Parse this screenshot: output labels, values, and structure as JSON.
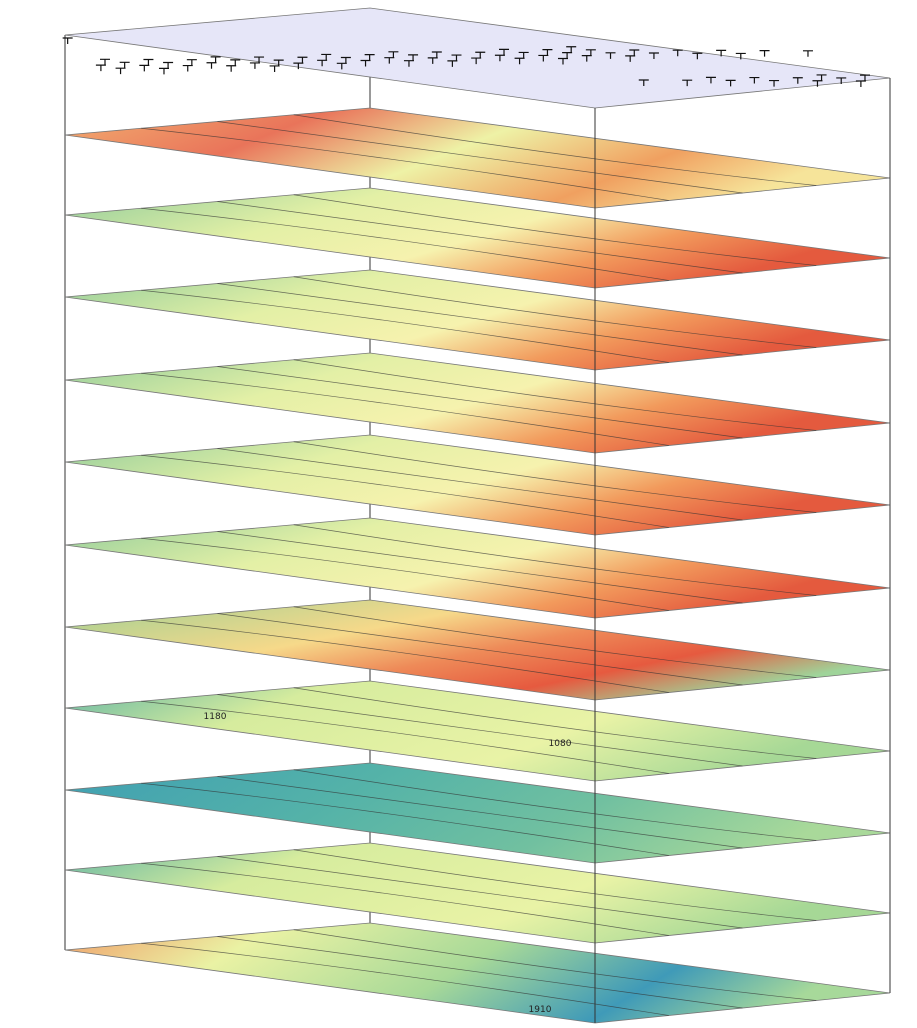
{
  "contour_labels": [
    "1180",
    "1080",
    "1910"
  ]
}
